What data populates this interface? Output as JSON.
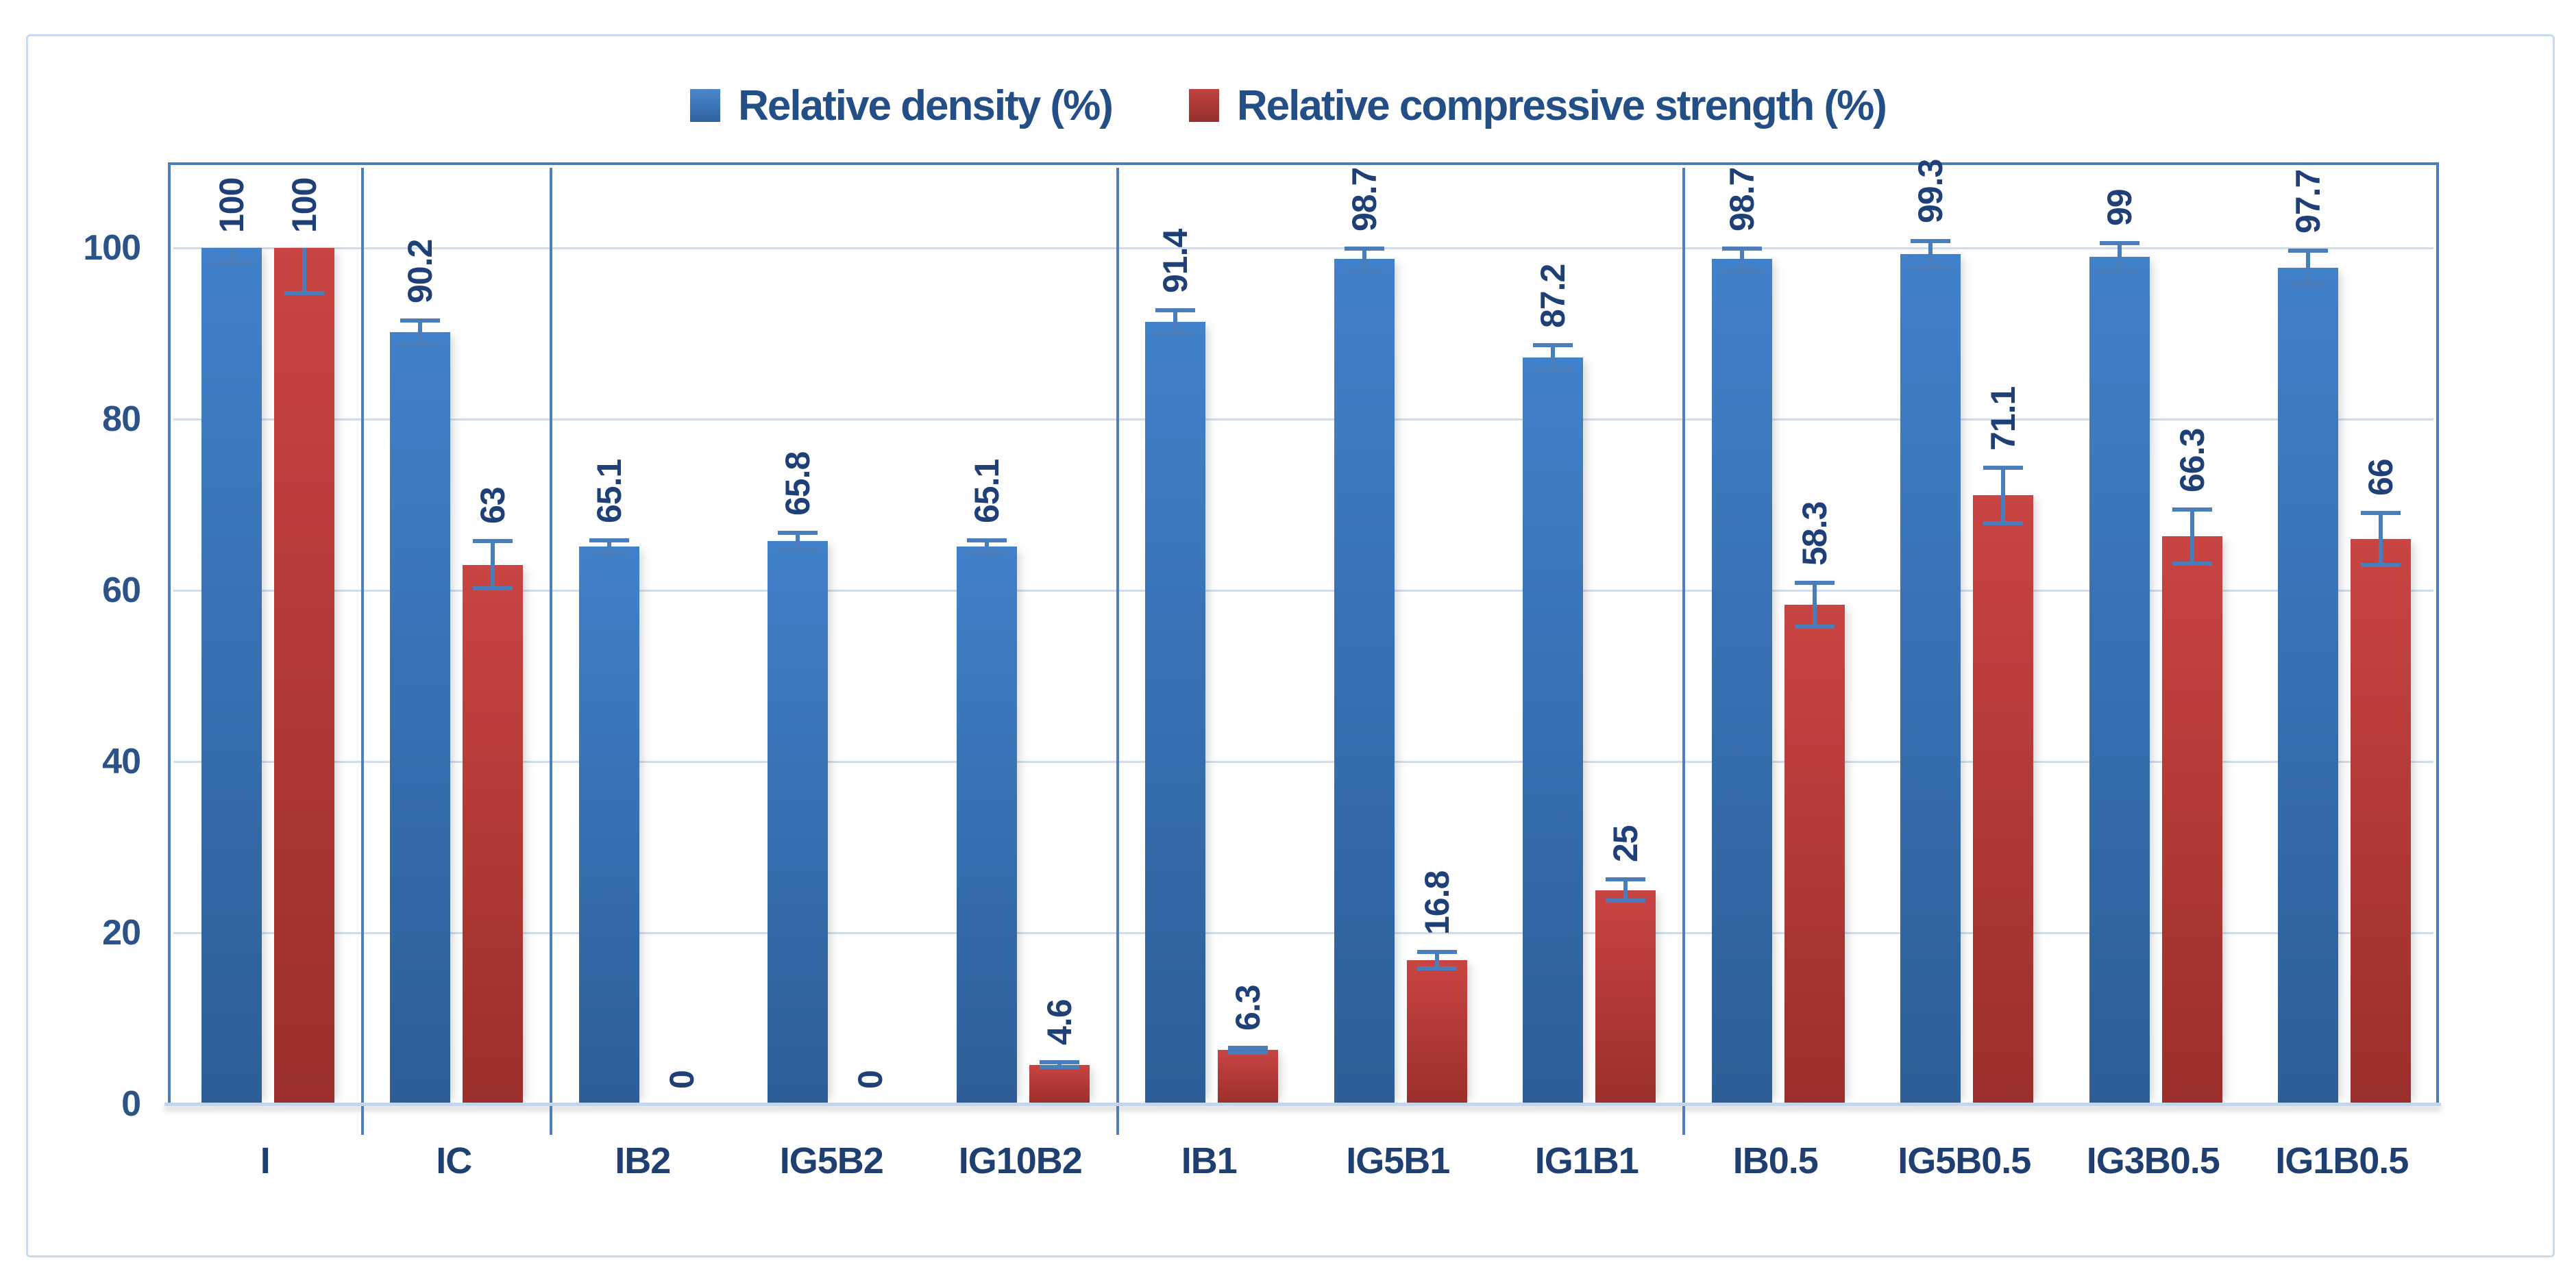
{
  "chart": {
    "legend": [
      {
        "label": "Relative density (%)",
        "swatch": "blue-square"
      },
      {
        "label": "Relative compressive strength (%)",
        "swatch": "red-square"
      }
    ],
    "colors": {
      "bar_blue_top": "#4181ca",
      "bar_blue_bottom": "#2d5e98",
      "bar_red_top": "#c94442",
      "bar_red_bottom": "#9b2f2b",
      "plot_border": "#4a7ebb",
      "error_bar": "#4a7ebb",
      "group_divider": "#4c80bd",
      "gridline": "#cdddf1",
      "axis_line": "#c4d6ec",
      "value_label_text": "#1f4077",
      "tick_text": "#2c5387",
      "legend_text": "#234e86"
    },
    "chart_data": {
      "type": "bar",
      "title": "",
      "xlabel": "",
      "ylabel": "",
      "categories": [
        "I",
        "IC",
        "IB2",
        "IG5B2",
        "IG10B2",
        "IB1",
        "IG5B1",
        "IG1B1",
        "IB0.5",
        "IG5B0.5",
        "IG3B0.5",
        "IG1B0.5"
      ],
      "series": [
        {
          "name": "Relative density (%)",
          "color_key": "blue",
          "values": [
            100,
            90.2,
            65.1,
            65.8,
            65.1,
            91.4,
            98.7,
            87.2,
            98.7,
            99.3,
            99,
            97.7
          ],
          "labels": [
            "100",
            "90.2",
            "65.1",
            "65.8",
            "65.1",
            "91.4",
            "98.7",
            "87.2",
            "98.7",
            "99.3",
            "99",
            "97.7"
          ],
          "err_minus": [
            2,
            1.6,
            1,
            1.2,
            1,
            1.6,
            1.5,
            1.7,
            1.5,
            1.8,
            1.8,
            2.2
          ],
          "err_plus": [
            0,
            1.6,
            1,
            1.2,
            1,
            1.6,
            1.5,
            1.7,
            1.5,
            1.8,
            1.8,
            2.2
          ]
        },
        {
          "name": "Relative compressive strength (%)",
          "color_key": "red",
          "values": [
            100,
            63,
            0,
            0,
            4.6,
            6.3,
            16.8,
            25,
            58.3,
            71.1,
            66.3,
            66
          ],
          "labels": [
            "100",
            "63",
            "0",
            "0",
            "4.6",
            "6.3",
            "16.8",
            "25",
            "58.3",
            "71.1",
            "66.3",
            "66"
          ],
          "err_minus": [
            5.5,
            3,
            0,
            0,
            0.5,
            0.5,
            1.2,
            1.5,
            2.8,
            3.5,
            3.4,
            3.3
          ],
          "err_plus": [
            0,
            3,
            0,
            0,
            0.5,
            0.5,
            1.2,
            1.5,
            2.8,
            3.5,
            3.4,
            3.3
          ]
        }
      ],
      "y_axis": {
        "ticks": [
          0,
          20,
          40,
          60,
          80,
          100
        ],
        "ylim": [
          0,
          109.7
        ],
        "gridlines_at": [
          20,
          40,
          60,
          80,
          100
        ]
      },
      "group_dividers_after_category_index": [
        0,
        1,
        4,
        7
      ],
      "grid": true,
      "legend_position": "top-center",
      "bar_value_labels_rotated_90deg": true
    }
  }
}
